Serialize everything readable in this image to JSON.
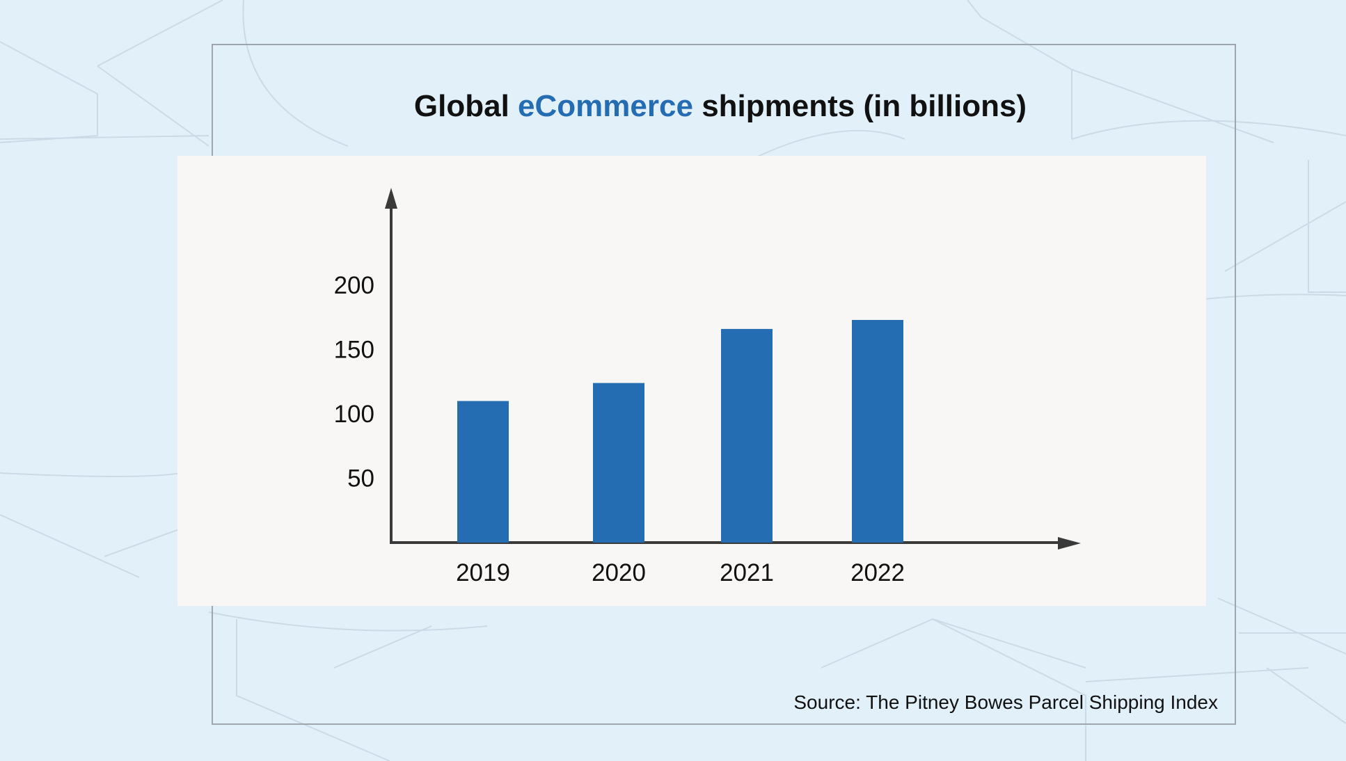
{
  "title": {
    "prefix": "Global",
    "highlight": "eCommerce",
    "suffix": "shipments (in billions)"
  },
  "source": "Source: The Pitney Bowes Parcel Shipping Index",
  "colors": {
    "background": "#e2f0fa",
    "panel": "#f8f7f5",
    "bar": "#246db3",
    "accent_text": "#246db3",
    "axis": "#3a3a3a"
  },
  "chart_data": {
    "type": "bar",
    "title": "Global eCommerce shipments (in billions)",
    "categories": [
      "2019",
      "2020",
      "2021",
      "2022"
    ],
    "values": [
      110,
      124,
      166,
      173
    ],
    "yticks": [
      "50",
      "100",
      "150",
      "200"
    ],
    "ylim": [
      0,
      270
    ],
    "xlabel": "",
    "ylabel": "",
    "grid": false,
    "legend": "none"
  }
}
